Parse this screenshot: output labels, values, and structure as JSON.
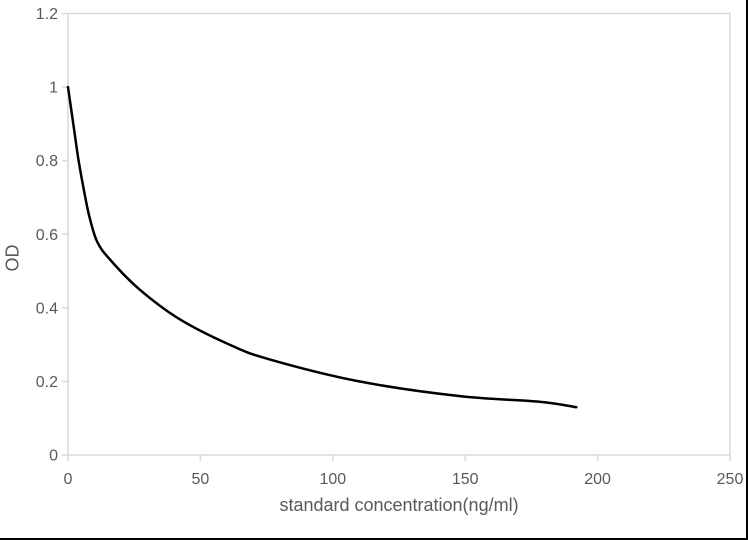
{
  "chart_data": {
    "type": "line",
    "title": "",
    "xlabel": "standard concentration(ng/ml)",
    "ylabel": "OD",
    "xlim": [
      0,
      250
    ],
    "ylim": [
      0,
      1.2
    ],
    "xticks": [
      0,
      50,
      100,
      150,
      200,
      250
    ],
    "xtick_labels": [
      "0",
      "50",
      "100",
      "150",
      "200",
      "250"
    ],
    "yticks": [
      0,
      0.2,
      0.4,
      0.6,
      0.8,
      1,
      1.2
    ],
    "ytick_labels": [
      "0",
      "0.2",
      "0.4",
      "0.6",
      "0.8",
      "1",
      "1.2"
    ],
    "grid": false,
    "legend": false,
    "series": [
      {
        "x": [
          0,
          2,
          4,
          6,
          8,
          11,
          16,
          27,
          42,
          61,
          76,
          110,
          148,
          178,
          192
        ],
        "y": [
          1.0,
          0.9,
          0.8,
          0.72,
          0.65,
          0.58,
          0.53,
          0.45,
          0.37,
          0.3,
          0.26,
          0.2,
          0.16,
          0.145,
          0.13
        ],
        "color": "#000000",
        "stroke_width": 2.5
      }
    ],
    "colors": {
      "axis": "#D9D9D9",
      "tick_label": "#595959",
      "axis_title": "#595959",
      "background": "#FFFFFF",
      "frame_border": "#000000"
    }
  }
}
